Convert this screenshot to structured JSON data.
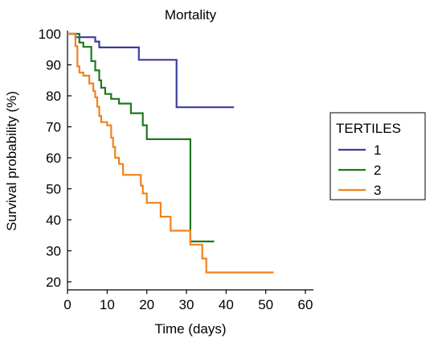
{
  "chart_data": {
    "type": "line",
    "title": "Mortality",
    "xlabel": "Time (days)",
    "ylabel": "Survival probability (%)",
    "xlim": [
      0,
      60
    ],
    "ylim": [
      20,
      100
    ],
    "xticks": [
      0,
      10,
      20,
      30,
      40,
      50,
      60
    ],
    "yticks": [
      20,
      30,
      40,
      50,
      60,
      70,
      80,
      90,
      100
    ],
    "grid": false,
    "legend": {
      "title": "TERTILES",
      "placement": "right"
    },
    "series": [
      {
        "name": "1",
        "color": "#3c3ca0",
        "steps": [
          [
            0,
            100
          ],
          [
            2,
            98.9
          ],
          [
            7,
            97.5
          ],
          [
            8,
            95.6
          ],
          [
            18,
            91.6
          ],
          [
            27.5,
            76.3
          ],
          [
            42,
            76.3
          ]
        ]
      },
      {
        "name": "2",
        "color": "#1e781e",
        "steps": [
          [
            0,
            100
          ],
          [
            3,
            97.2
          ],
          [
            4,
            95.8
          ],
          [
            6,
            91.2
          ],
          [
            7,
            88.2
          ],
          [
            8,
            85
          ],
          [
            8.5,
            82.6
          ],
          [
            9.5,
            80.6
          ],
          [
            11,
            79
          ],
          [
            13,
            77.5
          ],
          [
            16,
            74.4
          ],
          [
            19,
            70.5
          ],
          [
            20,
            66
          ],
          [
            31,
            33
          ],
          [
            37,
            33
          ]
        ]
      },
      {
        "name": "3",
        "color": "#f0821e",
        "steps": [
          [
            0,
            100
          ],
          [
            2,
            96
          ],
          [
            2.5,
            89.5
          ],
          [
            3,
            87.5
          ],
          [
            4,
            86.5
          ],
          [
            5.5,
            84
          ],
          [
            6.5,
            81.5
          ],
          [
            7,
            79.5
          ],
          [
            7.5,
            76.5
          ],
          [
            8,
            73.5
          ],
          [
            8.5,
            71.5
          ],
          [
            10,
            70.5
          ],
          [
            11,
            66.5
          ],
          [
            11.5,
            63.5
          ],
          [
            12,
            60
          ],
          [
            13,
            58
          ],
          [
            14,
            54.5
          ],
          [
            18.5,
            51
          ],
          [
            19,
            48.5
          ],
          [
            20,
            45.5
          ],
          [
            23.5,
            41
          ],
          [
            26,
            36.5
          ],
          [
            31,
            32
          ],
          [
            34,
            27.5
          ],
          [
            35,
            23
          ],
          [
            52,
            23
          ]
        ]
      }
    ]
  }
}
